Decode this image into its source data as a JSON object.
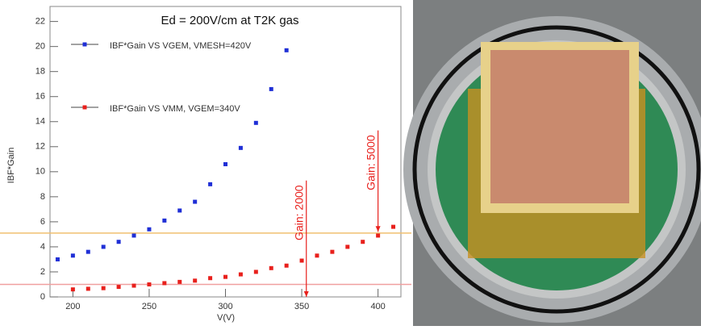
{
  "chart_data": {
    "type": "scatter",
    "title": "Ed = 200V/cm at T2K gas",
    "x_label": "V(V)",
    "y_label": "IBF*Gain",
    "xlim": [
      185,
      415
    ],
    "ylim": [
      0,
      23.2
    ],
    "xticks": [
      200,
      250,
      300,
      350,
      400
    ],
    "yticks": [
      0,
      2,
      4,
      6,
      8,
      10,
      12,
      14,
      16,
      18,
      20,
      22
    ],
    "series": [
      {
        "name": "IBF*Gain VS VGEM, VMESH=420V",
        "color": "#1f2fd6",
        "x": [
          190,
          200,
          210,
          220,
          230,
          240,
          250,
          260,
          270,
          280,
          290,
          300,
          310,
          320,
          330,
          340
        ],
        "values": [
          3.0,
          3.3,
          3.6,
          4.0,
          4.4,
          4.9,
          5.4,
          6.1,
          6.9,
          7.6,
          9.0,
          10.6,
          11.9,
          13.9,
          16.6,
          19.7
        ]
      },
      {
        "name": "IBF*Gain VS VMM, VGEM=340V",
        "color": "#e8201c",
        "x": [
          200,
          210,
          220,
          230,
          240,
          250,
          260,
          270,
          280,
          290,
          300,
          310,
          320,
          330,
          340,
          350,
          360,
          370,
          380,
          390,
          400,
          410
        ],
        "values": [
          0.6,
          0.65,
          0.7,
          0.8,
          0.9,
          1.0,
          1.1,
          1.2,
          1.3,
          1.5,
          1.6,
          1.8,
          2.0,
          2.3,
          2.5,
          2.9,
          3.3,
          3.6,
          4.0,
          4.4,
          4.9,
          5.6
        ]
      }
    ],
    "hlines": [
      {
        "value": 1,
        "color": "#f0a0a0"
      },
      {
        "value": 5.1,
        "color": "#f0c070"
      }
    ],
    "annotations": [
      {
        "text": "Gain: 2000",
        "x": 353,
        "y_from": 9.3,
        "y_to": 0,
        "color": "#e8201c"
      },
      {
        "text": "Gain: 5000",
        "x": 400,
        "y_from": 13.3,
        "y_to": 5.2,
        "color": "#e8201c"
      }
    ]
  }
}
